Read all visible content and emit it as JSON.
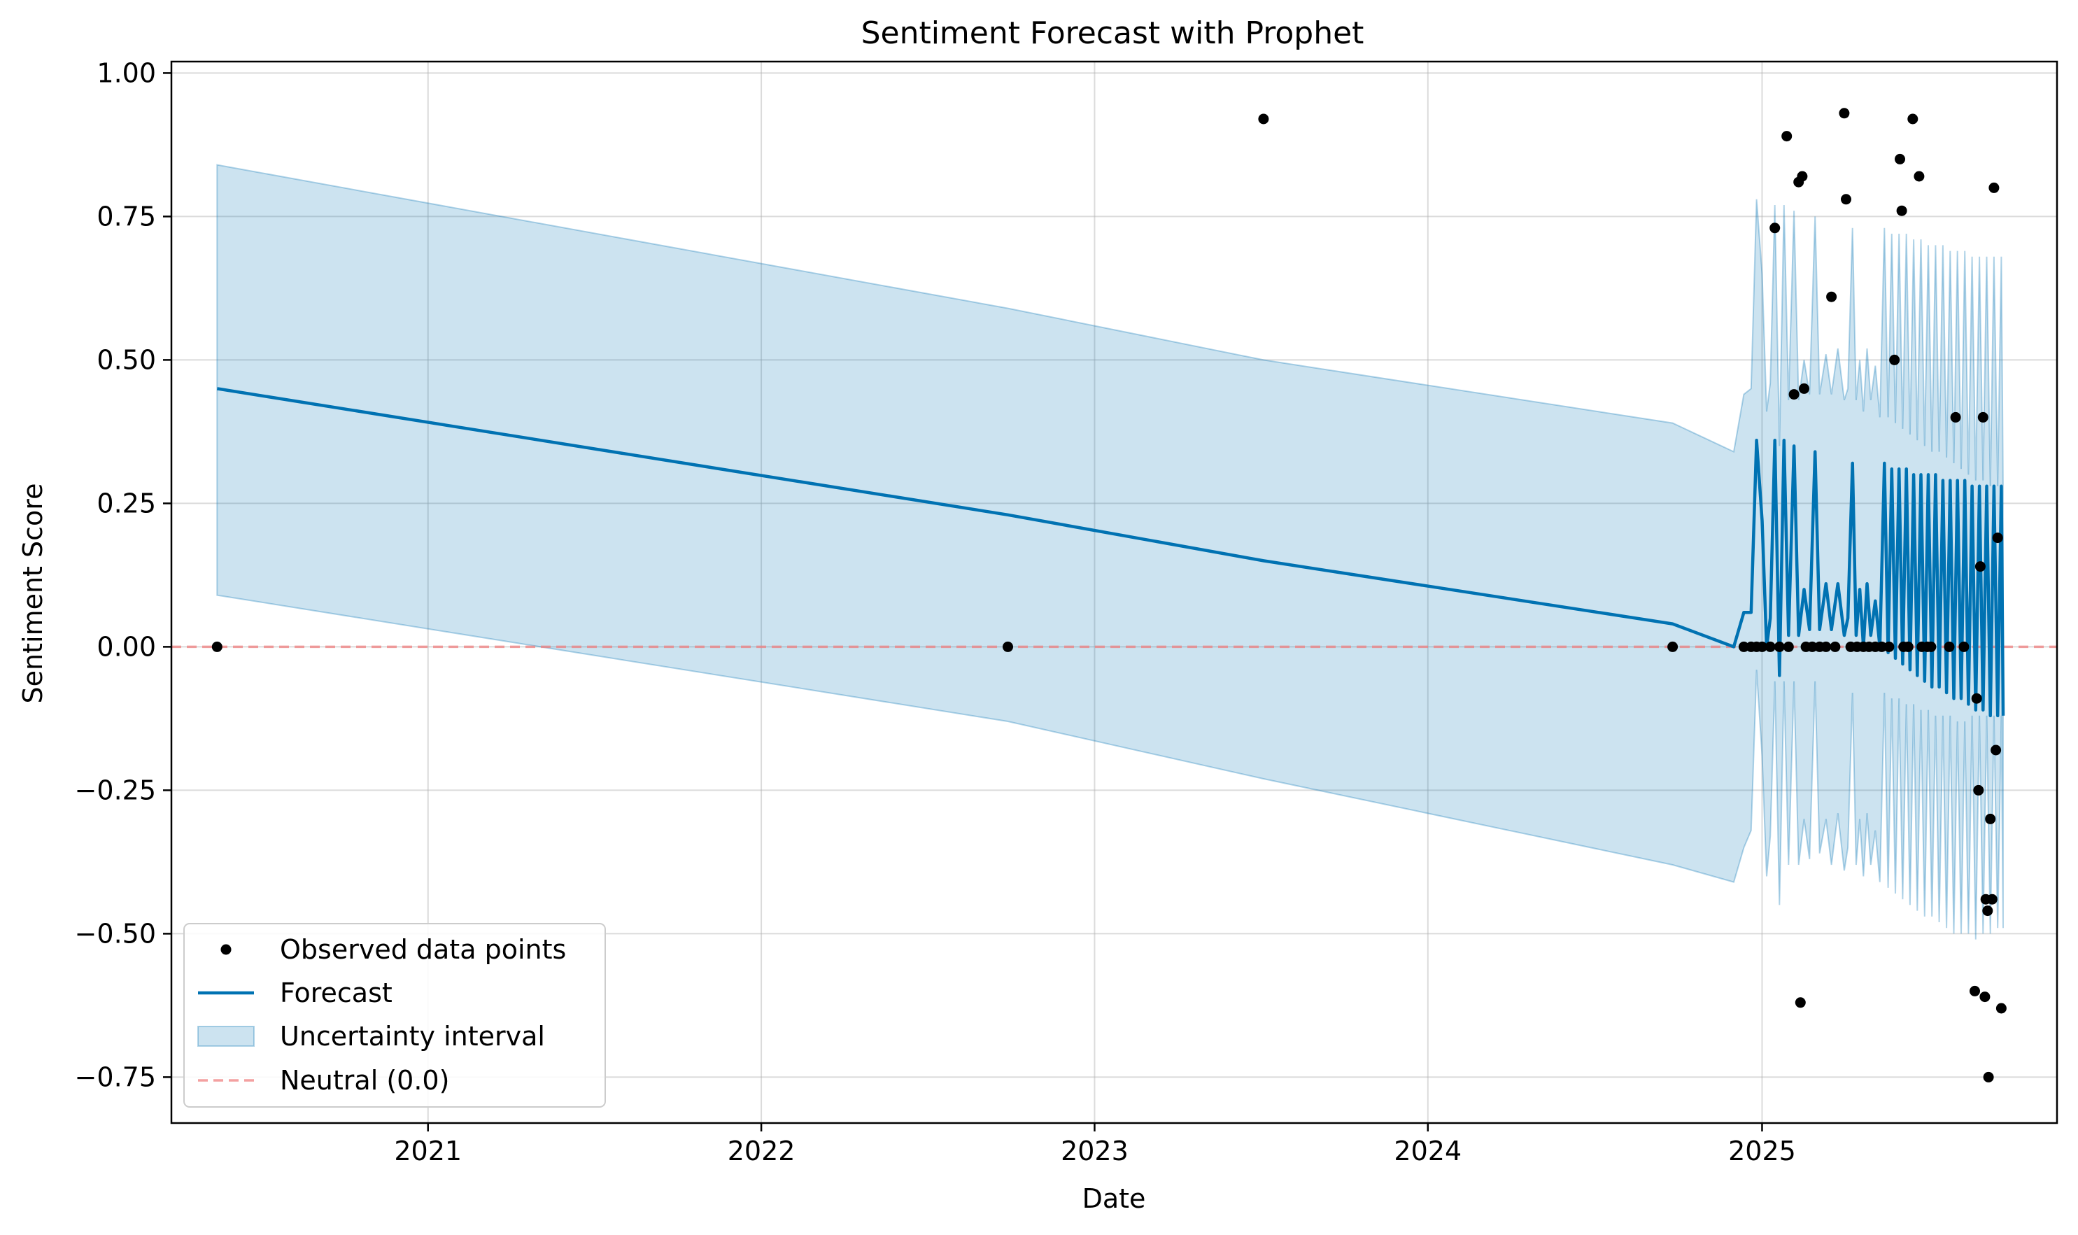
{
  "chart_data": {
    "type": "line",
    "title": "Sentiment Forecast with Prophet",
    "xlabel": "Date",
    "ylabel": "Sentiment Score",
    "xlim": [
      "2020-03-26",
      "2025-11-20"
    ],
    "ylim": [
      -0.83,
      1.02
    ],
    "x_ticks": [
      {
        "date": "2021-01-01",
        "label": "2021"
      },
      {
        "date": "2022-01-01",
        "label": "2022"
      },
      {
        "date": "2023-01-01",
        "label": "2023"
      },
      {
        "date": "2024-01-01",
        "label": "2024"
      },
      {
        "date": "2025-01-01",
        "label": "2025"
      }
    ],
    "y_ticks": [
      {
        "value": 1.0,
        "label": "1.00"
      },
      {
        "value": 0.75,
        "label": "0.75"
      },
      {
        "value": 0.5,
        "label": "0.50"
      },
      {
        "value": 0.25,
        "label": "0.25"
      },
      {
        "value": 0.0,
        "label": "0.00"
      },
      {
        "value": -0.25,
        "label": "−0.25"
      },
      {
        "value": -0.5,
        "label": "−0.50"
      },
      {
        "value": -0.75,
        "label": "−0.75"
      }
    ],
    "grid": true,
    "legend_position": "lower-left",
    "legend": [
      {
        "key": "observed",
        "label": "Observed data points"
      },
      {
        "key": "forecast",
        "label": "Forecast"
      },
      {
        "key": "interval",
        "label": "Uncertainty interval"
      },
      {
        "key": "neutral",
        "label": "Neutral (0.0)"
      }
    ],
    "colors": {
      "forecast": "#0072B2",
      "interval_fill": "#0072B2",
      "interval_edge": "#0072B2",
      "observed": "#000000",
      "neutral": "#f08080",
      "grid": "#b0b0b0",
      "axes": "#000000"
    },
    "neutral_value": 0.0,
    "observed": [
      {
        "x": "2020-05-15",
        "y": 0.0
      },
      {
        "x": "2022-09-28",
        "y": 0.0
      },
      {
        "x": "2023-07-05",
        "y": 0.92
      },
      {
        "x": "2024-09-25",
        "y": 0.0
      },
      {
        "x": "2024-12-12",
        "y": 0.0
      },
      {
        "x": "2024-12-20",
        "y": 0.0
      },
      {
        "x": "2024-12-26",
        "y": 0.0
      },
      {
        "x": "2025-01-01",
        "y": 0.0
      },
      {
        "x": "2025-01-10",
        "y": 0.0
      },
      {
        "x": "2025-01-15",
        "y": 0.73
      },
      {
        "x": "2025-01-20",
        "y": 0.0
      },
      {
        "x": "2025-01-28",
        "y": 0.89
      },
      {
        "x": "2025-01-30",
        "y": 0.0
      },
      {
        "x": "2025-02-05",
        "y": 0.44
      },
      {
        "x": "2025-02-10",
        "y": 0.81
      },
      {
        "x": "2025-02-12",
        "y": -0.62
      },
      {
        "x": "2025-02-14",
        "y": 0.82
      },
      {
        "x": "2025-02-16",
        "y": 0.45
      },
      {
        "x": "2025-02-18",
        "y": 0.0
      },
      {
        "x": "2025-02-25",
        "y": 0.0
      },
      {
        "x": "2025-03-05",
        "y": 0.0
      },
      {
        "x": "2025-03-12",
        "y": 0.0
      },
      {
        "x": "2025-03-18",
        "y": 0.61
      },
      {
        "x": "2025-03-22",
        "y": 0.0
      },
      {
        "x": "2025-04-01",
        "y": 0.93
      },
      {
        "x": "2025-04-03",
        "y": 0.78
      },
      {
        "x": "2025-04-08",
        "y": 0.0
      },
      {
        "x": "2025-04-15",
        "y": 0.0
      },
      {
        "x": "2025-04-22",
        "y": 0.0
      },
      {
        "x": "2025-04-28",
        "y": 0.0
      },
      {
        "x": "2025-05-05",
        "y": 0.0
      },
      {
        "x": "2025-05-12",
        "y": 0.0
      },
      {
        "x": "2025-05-20",
        "y": 0.0
      },
      {
        "x": "2025-05-26",
        "y": 0.5
      },
      {
        "x": "2025-06-01",
        "y": 0.85
      },
      {
        "x": "2025-06-03",
        "y": 0.76
      },
      {
        "x": "2025-06-05",
        "y": 0.0
      },
      {
        "x": "2025-06-10",
        "y": 0.0
      },
      {
        "x": "2025-06-15",
        "y": 0.92
      },
      {
        "x": "2025-06-22",
        "y": 0.82
      },
      {
        "x": "2025-06-25",
        "y": 0.0
      },
      {
        "x": "2025-07-01",
        "y": 0.0
      },
      {
        "x": "2025-07-05",
        "y": 0.0
      },
      {
        "x": "2025-07-25",
        "y": 0.0
      },
      {
        "x": "2025-08-01",
        "y": 0.4
      },
      {
        "x": "2025-08-10",
        "y": 0.0
      },
      {
        "x": "2025-08-22",
        "y": -0.6
      },
      {
        "x": "2025-08-24",
        "y": -0.09
      },
      {
        "x": "2025-08-26",
        "y": -0.25
      },
      {
        "x": "2025-08-28",
        "y": 0.14
      },
      {
        "x": "2025-08-31",
        "y": 0.4
      },
      {
        "x": "2025-09-02",
        "y": -0.61
      },
      {
        "x": "2025-09-03",
        "y": -0.44
      },
      {
        "x": "2025-09-05",
        "y": -0.46
      },
      {
        "x": "2025-09-06",
        "y": -0.75
      },
      {
        "x": "2025-09-08",
        "y": -0.3
      },
      {
        "x": "2025-09-10",
        "y": -0.44
      },
      {
        "x": "2025-09-12",
        "y": 0.8
      },
      {
        "x": "2025-09-14",
        "y": -0.18
      },
      {
        "x": "2025-09-16",
        "y": 0.19
      },
      {
        "x": "2025-09-20",
        "y": -0.63
      }
    ],
    "forecast": [
      {
        "x": "2020-05-15",
        "y": 0.45,
        "lower": 0.09,
        "upper": 0.84
      },
      {
        "x": "2022-09-28",
        "y": 0.23,
        "lower": -0.13,
        "upper": 0.59
      },
      {
        "x": "2023-07-05",
        "y": 0.15,
        "lower": -0.23,
        "upper": 0.5
      },
      {
        "x": "2024-09-25",
        "y": 0.04,
        "lower": -0.38,
        "upper": 0.39
      },
      {
        "x": "2024-12-01",
        "y": 0.0,
        "lower": -0.41,
        "upper": 0.34
      },
      {
        "x": "2024-12-12",
        "y": 0.06,
        "lower": -0.35,
        "upper": 0.44
      },
      {
        "x": "2024-12-20",
        "y": 0.06,
        "lower": -0.32,
        "upper": 0.45
      },
      {
        "x": "2024-12-26",
        "y": 0.36,
        "lower": -0.04,
        "upper": 0.78
      },
      {
        "x": "2025-01-01",
        "y": 0.22,
        "lower": -0.19,
        "upper": 0.65
      },
      {
        "x": "2025-01-06",
        "y": 0.0,
        "lower": -0.4,
        "upper": 0.41
      },
      {
        "x": "2025-01-10",
        "y": 0.05,
        "lower": -0.33,
        "upper": 0.46
      },
      {
        "x": "2025-01-15",
        "y": 0.36,
        "lower": -0.06,
        "upper": 0.77
      },
      {
        "x": "2025-01-20",
        "y": -0.05,
        "lower": -0.45,
        "upper": 0.35
      },
      {
        "x": "2025-01-25",
        "y": 0.36,
        "lower": -0.06,
        "upper": 0.77
      },
      {
        "x": "2025-01-30",
        "y": 0.02,
        "lower": -0.38,
        "upper": 0.43
      },
      {
        "x": "2025-02-05",
        "y": 0.35,
        "lower": -0.06,
        "upper": 0.76
      },
      {
        "x": "2025-02-10",
        "y": 0.02,
        "lower": -0.38,
        "upper": 0.43
      },
      {
        "x": "2025-02-16",
        "y": 0.1,
        "lower": -0.3,
        "upper": 0.5
      },
      {
        "x": "2025-02-22",
        "y": 0.03,
        "lower": -0.37,
        "upper": 0.44
      },
      {
        "x": "2025-02-28",
        "y": 0.34,
        "lower": -0.06,
        "upper": 0.75
      },
      {
        "x": "2025-03-05",
        "y": 0.03,
        "lower": -0.36,
        "upper": 0.44
      },
      {
        "x": "2025-03-12",
        "y": 0.11,
        "lower": -0.3,
        "upper": 0.51
      },
      {
        "x": "2025-03-18",
        "y": 0.03,
        "lower": -0.38,
        "upper": 0.44
      },
      {
        "x": "2025-03-25",
        "y": 0.11,
        "lower": -0.29,
        "upper": 0.52
      },
      {
        "x": "2025-04-01",
        "y": 0.02,
        "lower": -0.39,
        "upper": 0.43
      },
      {
        "x": "2025-04-05",
        "y": 0.05,
        "lower": -0.35,
        "upper": 0.45
      },
      {
        "x": "2025-04-10",
        "y": 0.32,
        "lower": -0.08,
        "upper": 0.73
      },
      {
        "x": "2025-04-14",
        "y": 0.02,
        "lower": -0.38,
        "upper": 0.43
      },
      {
        "x": "2025-04-18",
        "y": 0.1,
        "lower": -0.3,
        "upper": 0.5
      },
      {
        "x": "2025-04-22",
        "y": 0.0,
        "lower": -0.4,
        "upper": 0.41
      },
      {
        "x": "2025-04-26",
        "y": 0.11,
        "lower": -0.29,
        "upper": 0.52
      },
      {
        "x": "2025-04-30",
        "y": 0.02,
        "lower": -0.38,
        "upper": 0.43
      },
      {
        "x": "2025-05-05",
        "y": 0.08,
        "lower": -0.32,
        "upper": 0.49
      },
      {
        "x": "2025-05-10",
        "y": 0.0,
        "lower": -0.41,
        "upper": 0.4
      },
      {
        "x": "2025-05-15",
        "y": 0.32,
        "lower": -0.08,
        "upper": 0.73
      },
      {
        "x": "2025-05-19",
        "y": -0.01,
        "lower": -0.42,
        "upper": 0.4
      },
      {
        "x": "2025-05-23",
        "y": 0.31,
        "lower": -0.09,
        "upper": 0.72
      },
      {
        "x": "2025-05-27",
        "y": -0.02,
        "lower": -0.43,
        "upper": 0.39
      },
      {
        "x": "2025-05-31",
        "y": 0.31,
        "lower": -0.09,
        "upper": 0.72
      },
      {
        "x": "2025-06-04",
        "y": -0.03,
        "lower": -0.44,
        "upper": 0.38
      },
      {
        "x": "2025-06-08",
        "y": 0.31,
        "lower": -0.1,
        "upper": 0.72
      },
      {
        "x": "2025-06-12",
        "y": -0.04,
        "lower": -0.45,
        "upper": 0.37
      },
      {
        "x": "2025-06-16",
        "y": 0.3,
        "lower": -0.1,
        "upper": 0.71
      },
      {
        "x": "2025-06-20",
        "y": -0.05,
        "lower": -0.46,
        "upper": 0.36
      },
      {
        "x": "2025-06-24",
        "y": 0.3,
        "lower": -0.11,
        "upper": 0.71
      },
      {
        "x": "2025-06-28",
        "y": -0.06,
        "lower": -0.47,
        "upper": 0.35
      },
      {
        "x": "2025-07-02",
        "y": 0.3,
        "lower": -0.11,
        "upper": 0.7
      },
      {
        "x": "2025-07-06",
        "y": -0.07,
        "lower": -0.47,
        "upper": 0.34
      },
      {
        "x": "2025-07-10",
        "y": 0.3,
        "lower": -0.12,
        "upper": 0.7
      },
      {
        "x": "2025-07-14",
        "y": -0.07,
        "lower": -0.48,
        "upper": 0.34
      },
      {
        "x": "2025-07-18",
        "y": 0.29,
        "lower": -0.12,
        "upper": 0.7
      },
      {
        "x": "2025-07-22",
        "y": -0.08,
        "lower": -0.49,
        "upper": 0.33
      },
      {
        "x": "2025-07-26",
        "y": 0.29,
        "lower": -0.12,
        "upper": 0.69
      },
      {
        "x": "2025-07-30",
        "y": -0.09,
        "lower": -0.5,
        "upper": 0.32
      },
      {
        "x": "2025-08-03",
        "y": 0.29,
        "lower": -0.13,
        "upper": 0.69
      },
      {
        "x": "2025-08-07",
        "y": -0.09,
        "lower": -0.5,
        "upper": 0.31
      },
      {
        "x": "2025-08-11",
        "y": 0.29,
        "lower": -0.13,
        "upper": 0.69
      },
      {
        "x": "2025-08-15",
        "y": -0.1,
        "lower": -0.5,
        "upper": 0.3
      },
      {
        "x": "2025-08-19",
        "y": 0.28,
        "lower": -0.12,
        "upper": 0.68
      },
      {
        "x": "2025-08-23",
        "y": -0.11,
        "lower": -0.51,
        "upper": 0.29
      },
      {
        "x": "2025-08-27",
        "y": 0.28,
        "lower": -0.12,
        "upper": 0.68
      },
      {
        "x": "2025-08-31",
        "y": -0.11,
        "lower": -0.5,
        "upper": 0.29
      },
      {
        "x": "2025-09-04",
        "y": 0.28,
        "lower": -0.12,
        "upper": 0.68
      },
      {
        "x": "2025-09-08",
        "y": -0.12,
        "lower": -0.5,
        "upper": 0.28
      },
      {
        "x": "2025-09-12",
        "y": 0.28,
        "lower": -0.12,
        "upper": 0.68
      },
      {
        "x": "2025-09-16",
        "y": -0.12,
        "lower": -0.49,
        "upper": 0.28
      },
      {
        "x": "2025-09-20",
        "y": 0.28,
        "lower": -0.12,
        "upper": 0.68
      },
      {
        "x": "2025-09-22",
        "y": -0.12,
        "lower": -0.49,
        "upper": 0.27
      }
    ]
  }
}
